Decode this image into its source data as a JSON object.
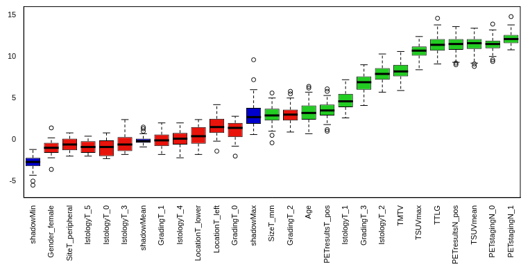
{
  "chart_data": {
    "type": "boxplot",
    "categories": [
      "shadowMin",
      "Gender_female",
      "SiteT_peripheral",
      "IstologyT_5",
      "IstologyT_0",
      "IstologyT_3",
      "shadowMean",
      "GradingT_1",
      "IstologyT_4",
      "LocationT_lower",
      "LocationT_left",
      "GradingT_0",
      "shadowMax",
      "SizeT_mm",
      "GradingT_2",
      "Age",
      "PETresultsT_pos",
      "IstologyT_1",
      "GradingT_3",
      "IstologyT_2",
      "TMTV",
      "TSUVmax",
      "TTLG",
      "PETresultsN_pos",
      "TSUVmean",
      "PETstagingN_0",
      "PETstagingN_1"
    ],
    "whisker_low": [
      -4.3,
      -2.2,
      -2.0,
      -2.0,
      -2.3,
      -1.8,
      -0.9,
      -1.8,
      -2.2,
      -1.8,
      -0.2,
      -0.8,
      0.6,
      1.0,
      0.9,
      0.7,
      1.8,
      2.6,
      4.1,
      5.7,
      5.9,
      8.4,
      9.1,
      9.3,
      9.2,
      10.0,
      10.8
    ],
    "q1": [
      -3.2,
      -1.6,
      -1.3,
      -1.6,
      -2.0,
      -1.4,
      -0.4,
      -0.8,
      -0.6,
      -0.5,
      0.8,
      0.3,
      1.9,
      2.3,
      2.3,
      2.4,
      2.9,
      3.9,
      6.0,
      7.2,
      7.6,
      10.1,
      10.7,
      10.8,
      10.9,
      11.0,
      11.6
    ],
    "median": [
      -2.7,
      -1.0,
      -0.6,
      -0.9,
      -0.9,
      -0.6,
      -0.2,
      -0.1,
      0.1,
      0.4,
      1.5,
      1.4,
      2.7,
      2.9,
      3.0,
      3.2,
      3.5,
      4.6,
      6.9,
      7.9,
      8.2,
      10.7,
      11.4,
      11.5,
      11.6,
      11.5,
      12.1
    ],
    "q3": [
      -2.2,
      -0.4,
      0.1,
      -0.2,
      -0.1,
      0.3,
      0.1,
      0.6,
      0.8,
      1.5,
      2.5,
      2.0,
      3.8,
      3.7,
      3.6,
      4.1,
      4.2,
      5.5,
      7.6,
      8.6,
      9.0,
      11.2,
      12.1,
      12.1,
      12.1,
      11.9,
      12.6
    ],
    "whisker_high": [
      -1.2,
      0.2,
      0.8,
      0.4,
      0.8,
      2.4,
      0.7,
      2.0,
      2.0,
      2.4,
      4.2,
      2.8,
      6.0,
      5.0,
      5.0,
      5.7,
      5.3,
      7.2,
      9.0,
      10.3,
      10.6,
      12.4,
      13.8,
      13.6,
      13.4,
      13.2,
      13.8
    ],
    "outliers": [
      [
        -5.0,
        -5.5
      ],
      [
        1.4,
        -3.6
      ],
      [],
      [],
      [],
      [],
      [
        1.0,
        1.3,
        1.5
      ],
      [],
      [],
      [],
      [
        -1.4
      ],
      [
        -2.0
      ],
      [
        7.2,
        9.6
      ],
      [
        0.5,
        -0.4,
        5.6
      ],
      [
        5.5,
        5.8
      ],
      [
        6.2,
        6.4
      ],
      [
        1.2,
        1.0,
        5.8,
        6.1
      ],
      [],
      [],
      [],
      [],
      [],
      [
        14.6
      ],
      [
        9.0,
        9.2
      ],
      [
        8.8,
        9.1
      ],
      [
        9.4,
        9.6,
        13.9
      ],
      [
        14.8
      ]
    ],
    "colors": [
      "#0000cd",
      "#e8140c",
      "#e8140c",
      "#e8140c",
      "#e8140c",
      "#e8140c",
      "#0000cd",
      "#e8140c",
      "#e8140c",
      "#e8140c",
      "#e8140c",
      "#e8140c",
      "#0000cd",
      "#22cc22",
      "#e8140c",
      "#22cc22",
      "#22cc22",
      "#22cc22",
      "#22cc22",
      "#22cc22",
      "#22cc22",
      "#22cc22",
      "#22cc22",
      "#22cc22",
      "#22cc22",
      "#22cc22",
      "#22cc22"
    ],
    "ylim": [
      -7,
      16
    ],
    "yticks": [
      -5,
      0,
      5,
      10,
      15
    ],
    "grid": false
  }
}
